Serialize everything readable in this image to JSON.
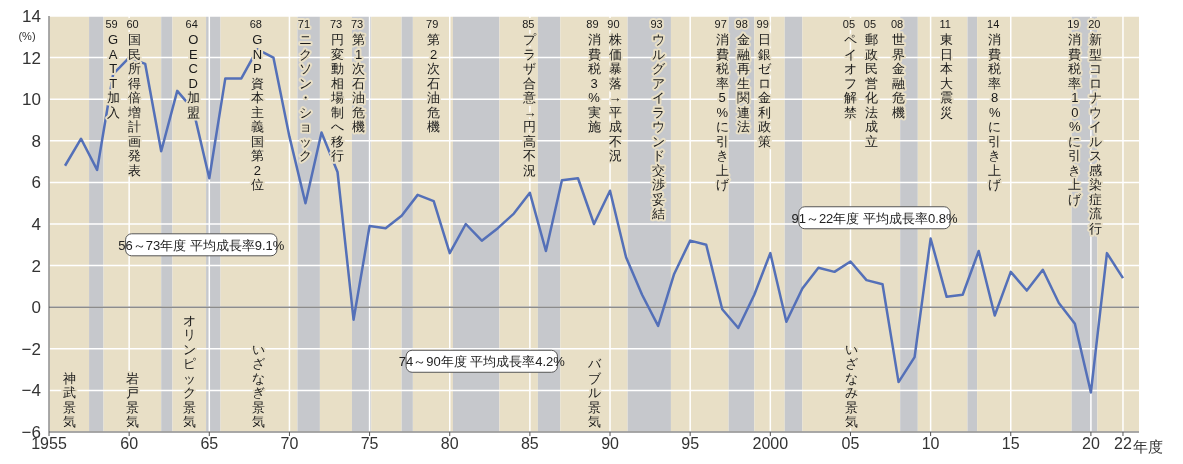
{
  "chart_data": {
    "type": "line",
    "ylabel": "(%)",
    "xlabel": "年度",
    "x": [
      1956,
      1957,
      1958,
      1959,
      1960,
      1961,
      1962,
      1963,
      1964,
      1965,
      1966,
      1967,
      1968,
      1969,
      1970,
      1971,
      1972,
      1973,
      1974,
      1975,
      1976,
      1977,
      1978,
      1979,
      1980,
      1981,
      1982,
      1983,
      1984,
      1985,
      1986,
      1987,
      1988,
      1989,
      1990,
      1991,
      1992,
      1993,
      1994,
      1995,
      1996,
      1997,
      1998,
      1999,
      2000,
      2001,
      2002,
      2003,
      2004,
      2005,
      2006,
      2007,
      2008,
      2009,
      2010,
      2011,
      2012,
      2013,
      2014,
      2015,
      2016,
      2017,
      2018,
      2019,
      2020,
      2021,
      2022
    ],
    "series": [
      {
        "color": "#5470b8",
        "values": [
          6.8,
          8.1,
          6.6,
          11.2,
          12.0,
          11.7,
          7.5,
          10.4,
          9.5,
          6.2,
          11.0,
          11.0,
          12.4,
          12.0,
          8.2,
          5.0,
          8.4,
          6.5,
          -0.6,
          3.9,
          3.8,
          4.4,
          5.4,
          5.1,
          2.6,
          4.0,
          3.2,
          3.8,
          4.5,
          5.5,
          2.7,
          6.1,
          6.2,
          4.0,
          5.6,
          2.4,
          0.6,
          -0.9,
          1.6,
          3.2,
          3.0,
          -0.1,
          -1.0,
          0.6,
          2.6,
          -0.7,
          0.9,
          1.9,
          1.7,
          2.2,
          1.3,
          1.1,
          -3.6,
          -2.4,
          3.3,
          0.5,
          0.6,
          2.7,
          -0.4,
          1.7,
          0.8,
          1.8,
          0.2,
          -0.8,
          -4.1,
          2.6,
          1.4
        ]
      }
    ],
    "xlim": [
      1955,
      2023
    ],
    "xticks": [
      1955,
      {
        "value": 1960,
        "label": "60"
      },
      {
        "value": 1965,
        "label": "65"
      },
      {
        "value": 1970,
        "label": "70"
      },
      {
        "value": 1975,
        "label": "75"
      },
      {
        "value": 1980,
        "label": "80"
      },
      {
        "value": 1985,
        "label": "85"
      },
      {
        "value": 1990,
        "label": "90"
      },
      {
        "value": 1995,
        "label": "95"
      },
      2000,
      {
        "value": 2005,
        "label": "05"
      },
      {
        "value": 2010,
        "label": "10"
      },
      {
        "value": 2015,
        "label": "15"
      },
      {
        "value": 2020,
        "label": "20"
      },
      {
        "value": 2022,
        "label": "22"
      }
    ],
    "ylim": [
      -6,
      14
    ],
    "yticks": [
      {
        "value": -6,
        "label": "−6"
      },
      {
        "value": -4,
        "label": "−4"
      },
      {
        "value": -2,
        "label": "−2"
      },
      0,
      2,
      4,
      6,
      8,
      10,
      12,
      14
    ],
    "grid": true,
    "legend": false,
    "marker": "none",
    "line_style": "solid",
    "ref_lines": [
      {
        "axis": "y",
        "value": 0,
        "color": "#8c8c8c"
      }
    ],
    "bands": [
      {
        "axis": "x",
        "from": 1955,
        "to": 1957.5,
        "color": "#e8dfc6",
        "label": "神武景気"
      },
      {
        "axis": "x",
        "from": 1957.5,
        "to": 1958.4,
        "color": "#c6c8cc"
      },
      {
        "axis": "x",
        "from": 1958.4,
        "to": 1962.0,
        "color": "#e8dfc6",
        "label": "岩戸景気"
      },
      {
        "axis": "x",
        "from": 1962.0,
        "to": 1962.7,
        "color": "#c6c8cc"
      },
      {
        "axis": "x",
        "from": 1962.7,
        "to": 1964.8,
        "color": "#e8dfc6",
        "label": "オリンピック景気"
      },
      {
        "axis": "x",
        "from": 1964.8,
        "to": 1965.7,
        "color": "#c6c8cc"
      },
      {
        "axis": "x",
        "from": 1965.7,
        "to": 1970.5,
        "color": "#e8dfc6",
        "label": "いざなぎ景気"
      },
      {
        "axis": "x",
        "from": 1970.5,
        "to": 1971.9,
        "color": "#c6c8cc"
      },
      {
        "axis": "x",
        "from": 1971.9,
        "to": 1973.9,
        "color": "#e8dfc6"
      },
      {
        "axis": "x",
        "from": 1973.9,
        "to": 1975.1,
        "color": "#c6c8cc"
      },
      {
        "axis": "x",
        "from": 1975.1,
        "to": 1977.0,
        "color": "#e8dfc6"
      },
      {
        "axis": "x",
        "from": 1977.0,
        "to": 1977.7,
        "color": "#c6c8cc"
      },
      {
        "axis": "x",
        "from": 1977.7,
        "to": 1980.2,
        "color": "#e8dfc6"
      },
      {
        "axis": "x",
        "from": 1980.2,
        "to": 1983.1,
        "color": "#c6c8cc"
      },
      {
        "axis": "x",
        "from": 1983.1,
        "to": 1985.5,
        "color": "#e8dfc6"
      },
      {
        "axis": "x",
        "from": 1985.5,
        "to": 1986.9,
        "color": "#c6c8cc"
      },
      {
        "axis": "x",
        "from": 1986.9,
        "to": 1991.1,
        "color": "#e8dfc6",
        "label": "バブル景気"
      },
      {
        "axis": "x",
        "from": 1991.1,
        "to": 1993.8,
        "color": "#c6c8cc"
      },
      {
        "axis": "x",
        "from": 1993.8,
        "to": 1997.4,
        "color": "#e8dfc6"
      },
      {
        "axis": "x",
        "from": 1997.4,
        "to": 1999.0,
        "color": "#c6c8cc"
      },
      {
        "axis": "x",
        "from": 1999.0,
        "to": 2000.9,
        "color": "#e8dfc6"
      },
      {
        "axis": "x",
        "from": 2000.9,
        "to": 2002.0,
        "color": "#c6c8cc"
      },
      {
        "axis": "x",
        "from": 2002.0,
        "to": 2008.1,
        "color": "#e8dfc6",
        "label": "いざなみ景気"
      },
      {
        "axis": "x",
        "from": 2008.1,
        "to": 2009.2,
        "color": "#c6c8cc"
      },
      {
        "axis": "x",
        "from": 2009.2,
        "to": 2012.3,
        "color": "#e8dfc6"
      },
      {
        "axis": "x",
        "from": 2012.3,
        "to": 2012.9,
        "color": "#c6c8cc"
      },
      {
        "axis": "x",
        "from": 2012.9,
        "to": 2018.8,
        "color": "#e8dfc6"
      },
      {
        "axis": "x",
        "from": 2018.8,
        "to": 2020.4,
        "color": "#c6c8cc"
      },
      {
        "axis": "x",
        "from": 2020.4,
        "to": 2023,
        "color": "#e8dfc6"
      }
    ],
    "annotations": [
      "59 GATT加入",
      "60 国民所得倍増計画発表",
      "64 OECD加盟",
      "68 GNP資本主義国第2位",
      "71 ニクソン・ショック",
      "73 円変動相場制へ移行",
      "73 第1次石油危機",
      "79 第2次石油危機",
      "85 プラザ合意→円高不況",
      "89 消費税3%実施",
      "90 株価暴落→平成不況",
      "93 ウルグアイラウンド交渉妥結",
      "97 消費税率5%に引き上げ",
      "98 金融再生関連法",
      "99 日銀ゼロ金利政策",
      "05 ペイオフ解禁",
      "05 郵政民営化法成立",
      "08 世界金融危機",
      "11 東日本大震災",
      "14 消費税率8%に引き上げ",
      "19 消費税率10%に引き上げ",
      "20 新型コロナウイルス感染症流行",
      "56～73年度 平均成長率9.1%",
      "74～90年度 平均成長率4.2%",
      "91～22年度 平均成長率0.8%"
    ]
  }
}
